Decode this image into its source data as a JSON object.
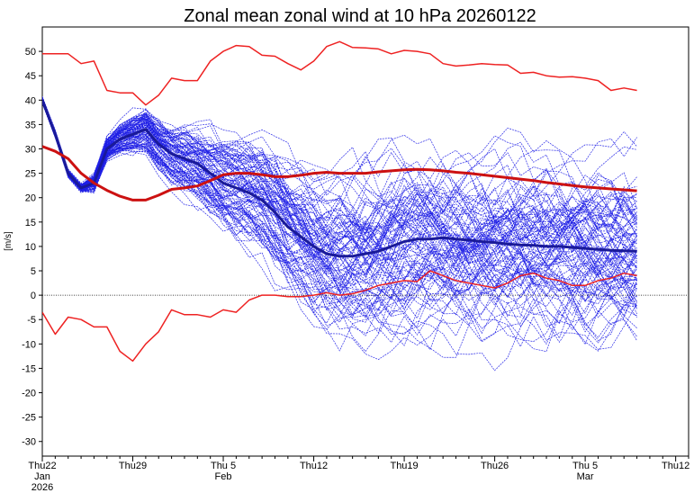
{
  "chart_data": {
    "type": "line",
    "title": "Zonal mean zonal wind at 10 hPa 20260122",
    "xlabel": "",
    "ylabel": "[m/s]",
    "ylim": [
      -33,
      55
    ],
    "xlim_days": [
      0,
      50
    ],
    "y_ticks": [
      -30,
      -25,
      -20,
      -15,
      -10,
      -5,
      0,
      5,
      10,
      15,
      20,
      25,
      30,
      35,
      40,
      45,
      50
    ],
    "x_ticks": [
      {
        "day": 0,
        "lines": [
          "Thu22",
          "Jan",
          "2026"
        ]
      },
      {
        "day": 7,
        "lines": [
          "Thu29"
        ]
      },
      {
        "day": 14,
        "lines": [
          "Thu 5",
          "Feb"
        ]
      },
      {
        "day": 21,
        "lines": [
          "Thu12"
        ]
      },
      {
        "day": 28,
        "lines": [
          "Thu19"
        ]
      },
      {
        "day": 35,
        "lines": [
          "Thu26"
        ]
      },
      {
        "day": 42,
        "lines": [
          "Thu 5",
          "Mar"
        ]
      },
      {
        "day": 49,
        "lines": [
          "Thu12"
        ]
      }
    ],
    "zero_line": 0,
    "ensemble_count": 100,
    "colors": {
      "ensemble": "#1f1fe6",
      "ensemble_mean": "#1a1a99",
      "climatology": "#cc1111",
      "extremes": "#ee2222"
    },
    "series": [
      {
        "role": "ensemble_mean",
        "x": [
          0,
          1,
          2,
          3,
          4,
          5,
          6,
          7,
          8,
          9,
          10,
          11,
          12,
          13,
          14,
          15,
          16,
          17,
          18,
          19,
          20,
          21,
          22,
          23,
          24,
          25,
          26,
          27,
          28,
          29,
          30,
          31,
          32,
          33,
          34,
          35,
          36,
          37,
          38,
          39,
          40,
          41,
          42,
          43,
          44,
          45,
          46
        ],
        "values": [
          40,
          33,
          25,
          22,
          23,
          30,
          32,
          33,
          34,
          31,
          29,
          28,
          27,
          25,
          23,
          22,
          21,
          19.5,
          17,
          14,
          12,
          10,
          8.5,
          8,
          8,
          8.5,
          9,
          10,
          11,
          11.5,
          11.5,
          11.8,
          11.5,
          11.3,
          11,
          10.8,
          10.5,
          10.3,
          10.2,
          10,
          10,
          9.8,
          9.6,
          9.4,
          9.2,
          9.1,
          9
        ]
      },
      {
        "role": "climatology",
        "x": [
          0,
          1,
          2,
          3,
          4,
          5,
          6,
          7,
          8,
          9,
          10,
          11,
          12,
          13,
          14,
          15,
          16,
          17,
          18,
          19,
          20,
          21,
          22,
          23,
          24,
          25,
          26,
          27,
          28,
          29,
          30,
          31,
          32,
          33,
          34,
          35,
          36,
          37,
          38,
          39,
          40,
          41,
          42,
          43,
          44,
          45,
          46
        ],
        "values": [
          30.5,
          29.5,
          28,
          25,
          23,
          21.5,
          20.3,
          19.5,
          19.5,
          20.5,
          21.7,
          22,
          22.4,
          23.5,
          24.7,
          25,
          25,
          24.7,
          24.3,
          24.3,
          24.6,
          25,
          25.2,
          25,
          25,
          25,
          25.3,
          25.5,
          25.7,
          25.8,
          25.7,
          25.5,
          25.2,
          25,
          24.7,
          24.4,
          24.1,
          23.8,
          23.5,
          23.1,
          22.8,
          22.5,
          22.2,
          22,
          21.8,
          21.6,
          21.4
        ]
      },
      {
        "role": "ensemble_max",
        "x": [
          0,
          1,
          2,
          3,
          4,
          5,
          6,
          7,
          8,
          9,
          10,
          11,
          12,
          13,
          14,
          15,
          16,
          17,
          18,
          19,
          20,
          21,
          22,
          23,
          24,
          25,
          26,
          27,
          28,
          29,
          30,
          31,
          32,
          33,
          34,
          35,
          36,
          37,
          38,
          39,
          40,
          41,
          42,
          43,
          44,
          45,
          46
        ],
        "values": [
          49.5,
          49.5,
          49.5,
          47.5,
          48,
          42,
          41.5,
          41.5,
          39,
          41,
          44.5,
          44,
          44,
          48,
          50,
          51.2,
          51,
          49.2,
          49,
          47.5,
          46.2,
          48,
          51,
          52,
          50.8,
          50.7,
          50.5,
          49.5,
          50.2,
          50,
          49.5,
          47.5,
          47,
          47.2,
          47.5,
          47.3,
          47.2,
          45.5,
          45.7,
          45,
          44.7,
          44.8,
          44.5,
          44,
          42,
          42.5,
          42
        ]
      },
      {
        "role": "ensemble_min",
        "x": [
          0,
          1,
          2,
          3,
          4,
          5,
          6,
          7,
          8,
          9,
          10,
          11,
          12,
          13,
          14,
          15,
          16,
          17,
          18,
          19,
          20,
          21,
          22,
          23,
          24,
          25,
          26,
          27,
          28,
          29,
          30,
          31,
          32,
          33,
          34,
          35,
          36,
          37,
          38,
          39,
          40,
          41,
          42,
          43,
          44,
          45,
          46
        ],
        "values": [
          -3.5,
          -8,
          -4.5,
          -5,
          -6.5,
          -6.5,
          -11.5,
          -13.5,
          -10,
          -7.5,
          -3,
          -4,
          -4,
          -4.5,
          -3,
          -3.5,
          -1,
          0,
          0,
          -0.3,
          -0.3,
          0,
          0.5,
          0,
          0.3,
          1,
          2,
          2.5,
          3,
          2.8,
          5,
          4,
          3,
          2.5,
          2,
          1.5,
          2.5,
          4,
          4.5,
          3.5,
          3,
          2,
          2,
          3,
          3.5,
          4.5,
          4
        ]
      }
    ]
  }
}
